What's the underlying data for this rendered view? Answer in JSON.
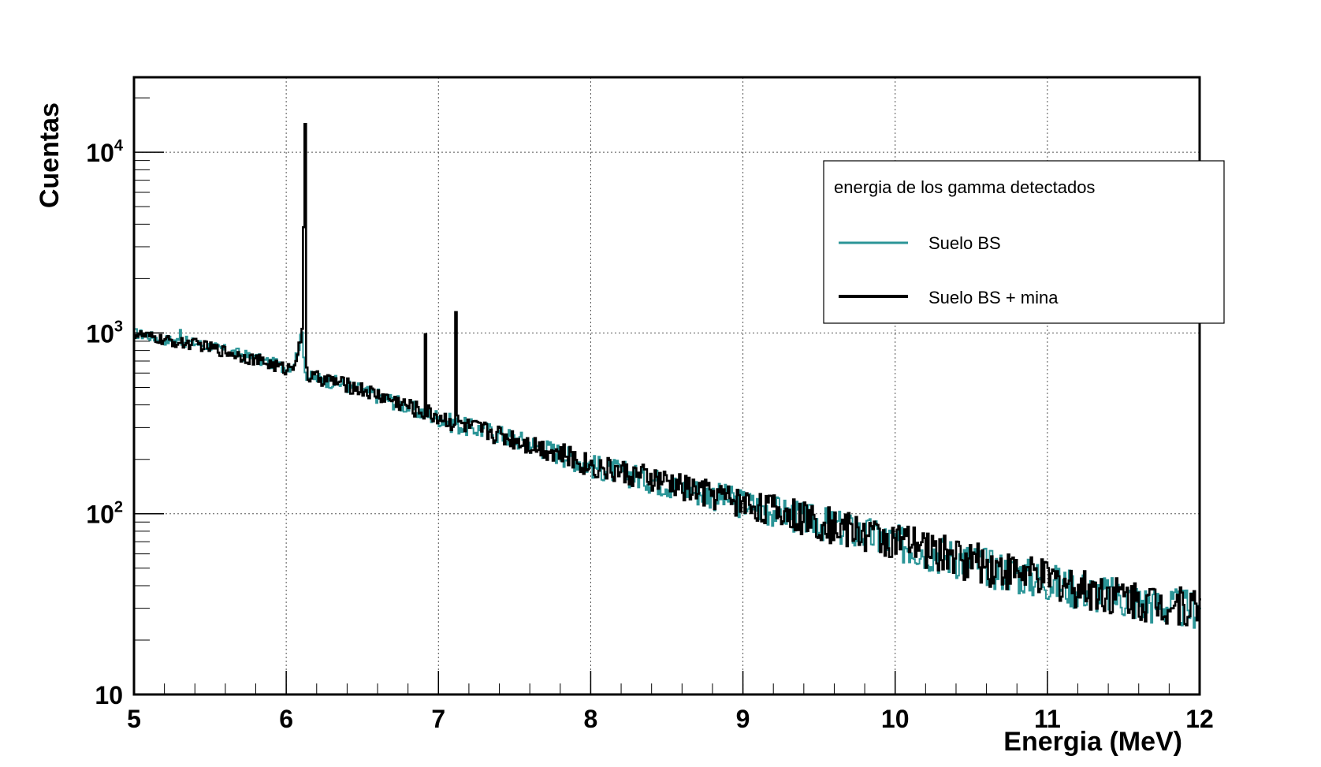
{
  "chart_data": {
    "type": "line",
    "xlabel": "Energia (MeV)",
    "ylabel": "Cuentas",
    "xlim": [
      5,
      12
    ],
    "ylim": [
      10,
      26000
    ],
    "yscale": "log",
    "grid": true,
    "legend_placement": "top-right",
    "legend_title": "energia de los gamma detectados",
    "x_ticks": [
      "5",
      "6",
      "7",
      "8",
      "9",
      "10",
      "11",
      "12"
    ],
    "y_ticks": [
      {
        "value": 10,
        "base": "10",
        "exp": ""
      },
      {
        "value": 100,
        "base": "10",
        "exp": "2"
      },
      {
        "value": 1000,
        "base": "10",
        "exp": "3"
      },
      {
        "value": 10000,
        "base": "10",
        "exp": "4"
      }
    ],
    "series": [
      {
        "name": "Suelo BS",
        "color": "#2b9597",
        "x": [
          5.0,
          5.1,
          5.2,
          5.29,
          5.3,
          5.31,
          5.4,
          5.5,
          5.6,
          5.7,
          5.8,
          5.9,
          6.0,
          6.05,
          6.08,
          6.1,
          6.12,
          6.14,
          6.2,
          6.3,
          6.4,
          6.5,
          6.6,
          6.7,
          6.8,
          6.9,
          7.0,
          7.1,
          7.2,
          7.3,
          7.4,
          7.5,
          7.6,
          7.7,
          7.8,
          7.9,
          8.0,
          8.2,
          8.4,
          8.6,
          8.8,
          9.0,
          9.2,
          9.4,
          9.6,
          9.8,
          10.0,
          10.2,
          10.4,
          10.6,
          10.8,
          11.0,
          11.2,
          11.4,
          11.6,
          11.8,
          12.0
        ],
        "y": [
          1000,
          960,
          920,
          900,
          1100,
          900,
          880,
          840,
          800,
          760,
          720,
          680,
          640,
          700,
          850,
          1000,
          620,
          570,
          560,
          540,
          510,
          480,
          450,
          420,
          390,
          360,
          340,
          315,
          300,
          290,
          275,
          260,
          245,
          230,
          215,
          200,
          185,
          170,
          155,
          140,
          128,
          115,
          105,
          95,
          86,
          78,
          70,
          64,
          58,
          52,
          47,
          43,
          39,
          36,
          33,
          31,
          30
        ]
      },
      {
        "name": "Suelo BS + mina",
        "color": "#000000",
        "x": [
          5.0,
          5.1,
          5.2,
          5.3,
          5.4,
          5.5,
          5.6,
          5.7,
          5.8,
          5.9,
          6.0,
          6.05,
          6.08,
          6.1,
          6.12,
          6.13,
          6.14,
          6.2,
          6.3,
          6.4,
          6.5,
          6.6,
          6.7,
          6.8,
          6.9,
          6.91,
          6.92,
          7.0,
          7.1,
          7.11,
          7.12,
          7.2,
          7.3,
          7.4,
          7.5,
          7.6,
          7.7,
          7.8,
          7.9,
          8.0,
          8.2,
          8.4,
          8.6,
          8.8,
          9.0,
          9.2,
          9.4,
          9.6,
          9.8,
          10.0,
          10.2,
          10.4,
          10.6,
          10.8,
          11.0,
          11.2,
          11.4,
          11.6,
          11.8,
          12.0
        ],
        "y": [
          990,
          950,
          910,
          880,
          870,
          830,
          790,
          750,
          710,
          670,
          630,
          690,
          840,
          990,
          14500,
          640,
          575,
          565,
          545,
          515,
          485,
          455,
          425,
          395,
          365,
          980,
          365,
          345,
          320,
          1320,
          320,
          300,
          290,
          275,
          260,
          245,
          230,
          215,
          200,
          186,
          171,
          156,
          141,
          129,
          116,
          106,
          96,
          87,
          79,
          71,
          65,
          59,
          53,
          48,
          44,
          40,
          37,
          34,
          32,
          31
        ]
      }
    ]
  }
}
